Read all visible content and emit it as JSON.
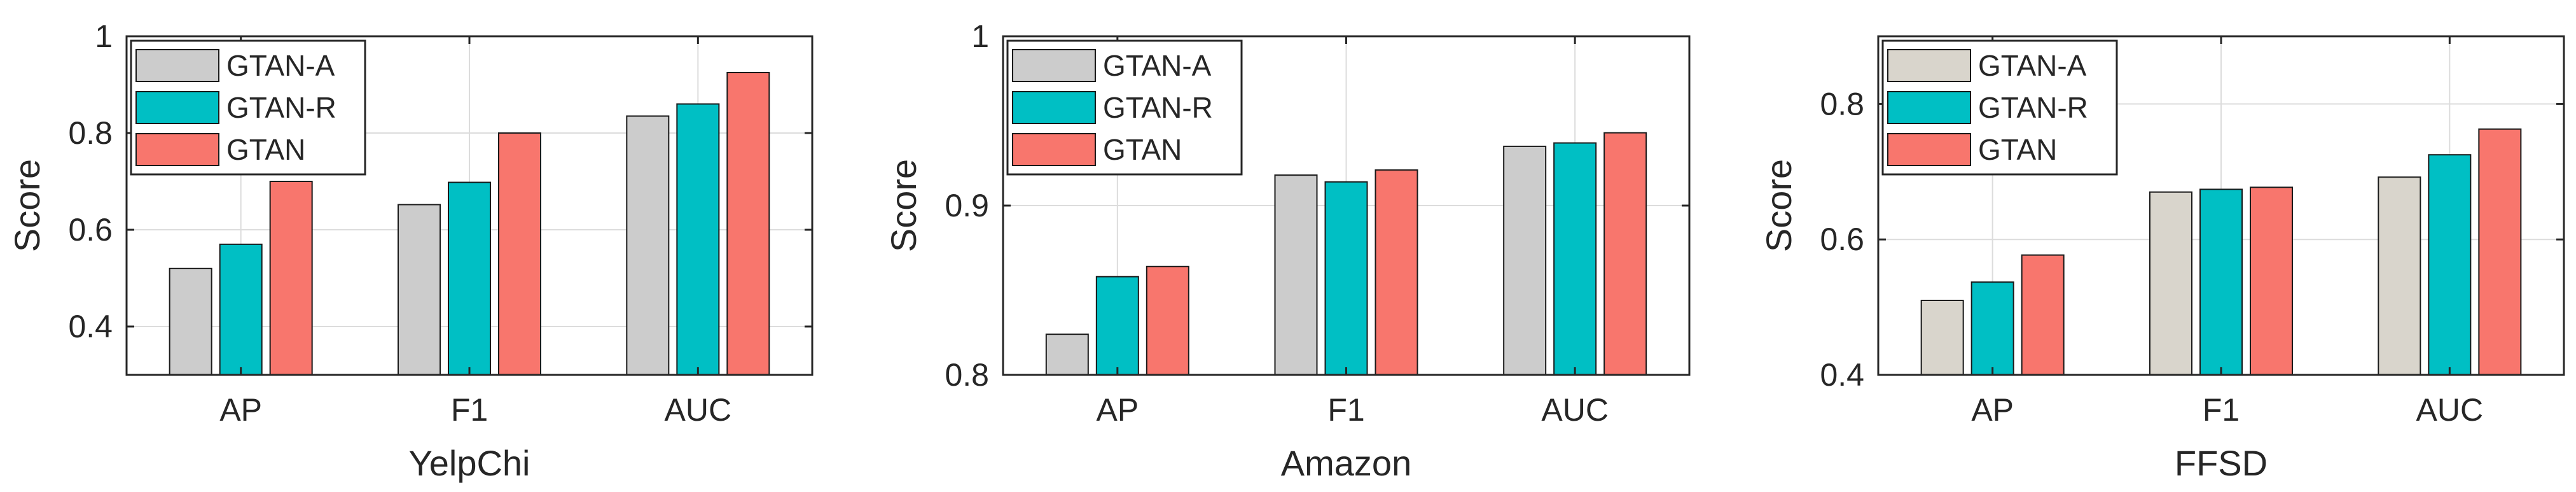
{
  "chart_data": [
    {
      "type": "bar",
      "title": "",
      "xlabel": "YelpChi",
      "ylabel": "Score",
      "ylim": [
        0.3,
        1.0
      ],
      "yticks": [
        0.4,
        0.6,
        0.8,
        1
      ],
      "ytick_labels": [
        "0.4",
        "0.6",
        "0.8",
        "1"
      ],
      "grid": true,
      "legend_position": "top-left",
      "categories": [
        "AP",
        "F1",
        "AUC"
      ],
      "series": [
        {
          "name": "GTAN-A",
          "color": "#cccccc",
          "values": [
            0.52,
            0.652,
            0.835
          ]
        },
        {
          "name": "GTAN-R",
          "color": "#00bfc4",
          "values": [
            0.57,
            0.698,
            0.86
          ]
        },
        {
          "name": "GTAN",
          "color": "#f8766d",
          "values": [
            0.7,
            0.8,
            0.925
          ]
        }
      ]
    },
    {
      "type": "bar",
      "title": "",
      "xlabel": "Amazon",
      "ylabel": "Score",
      "ylim": [
        0.8,
        1.0
      ],
      "yticks": [
        0.8,
        0.9,
        1
      ],
      "ytick_labels": [
        "0.8",
        "0.9",
        "1"
      ],
      "grid": true,
      "legend_position": "top-left",
      "categories": [
        "AP",
        "F1",
        "AUC"
      ],
      "series": [
        {
          "name": "GTAN-A",
          "color": "#cccccc",
          "values": [
            0.824,
            0.918,
            0.935
          ]
        },
        {
          "name": "GTAN-R",
          "color": "#00bfc4",
          "values": [
            0.858,
            0.914,
            0.937
          ]
        },
        {
          "name": "GTAN",
          "color": "#f8766d",
          "values": [
            0.864,
            0.921,
            0.943
          ]
        }
      ]
    },
    {
      "type": "bar",
      "title": "",
      "xlabel": "FFSD",
      "ylabel": "Score",
      "ylim": [
        0.4,
        0.9
      ],
      "yticks": [
        0.4,
        0.6,
        0.8
      ],
      "ytick_labels": [
        "0.4",
        "0.6",
        "0.8"
      ],
      "grid": true,
      "legend_position": "top-left",
      "categories": [
        "AP",
        "F1",
        "AUC"
      ],
      "series": [
        {
          "name": "GTAN-A",
          "color": "#d9d5cc",
          "values": [
            0.51,
            0.67,
            0.692
          ]
        },
        {
          "name": "GTAN-R",
          "color": "#00bfc4",
          "values": [
            0.537,
            0.674,
            0.725
          ]
        },
        {
          "name": "GTAN",
          "color": "#f8766d",
          "values": [
            0.577,
            0.677,
            0.763
          ]
        }
      ]
    }
  ]
}
